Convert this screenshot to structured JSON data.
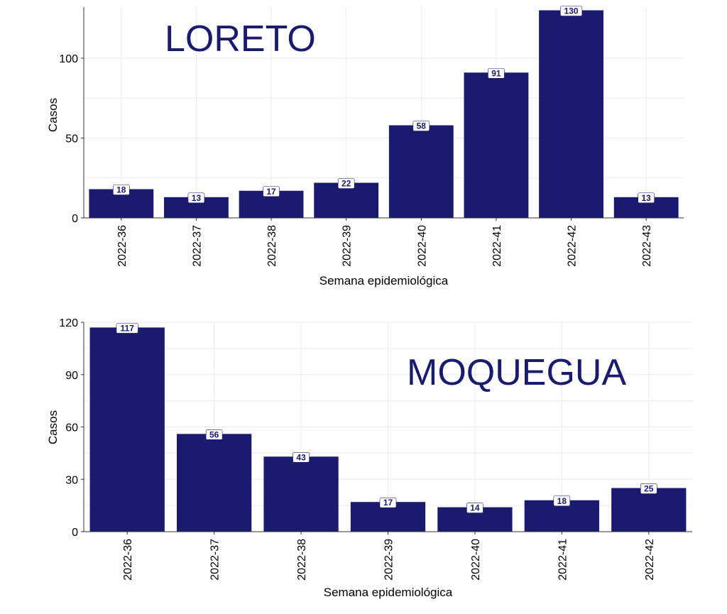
{
  "colors": {
    "bar": "#1a1a6e",
    "title": "#1b1b6e",
    "grid": "#ebebeb",
    "label_bg": "#ffffff"
  },
  "chart_data": [
    {
      "type": "bar",
      "title": "LORETO",
      "xlabel": "Semana epidemiológica",
      "ylabel": "Casos",
      "categories": [
        "2022-36",
        "2022-37",
        "2022-38",
        "2022-39",
        "2022-40",
        "2022-41",
        "2022-42",
        "2022-43"
      ],
      "values": [
        18,
        13,
        17,
        22,
        58,
        91,
        130,
        13
      ],
      "yticks": [
        0,
        50,
        100
      ],
      "ylim": [
        0,
        132
      ],
      "grid": true,
      "data_labels": true
    },
    {
      "type": "bar",
      "title": "MOQUEGUA",
      "xlabel": "Semana epidemiológica",
      "ylabel": "Casos",
      "categories": [
        "2022-36",
        "2022-37",
        "2022-38",
        "2022-39",
        "2022-40",
        "2022-41",
        "2022-42"
      ],
      "values": [
        117,
        56,
        43,
        17,
        14,
        18,
        25
      ],
      "yticks": [
        0,
        30,
        60,
        90,
        120
      ],
      "ylim": [
        0,
        120
      ],
      "grid": true,
      "data_labels": true
    }
  ]
}
